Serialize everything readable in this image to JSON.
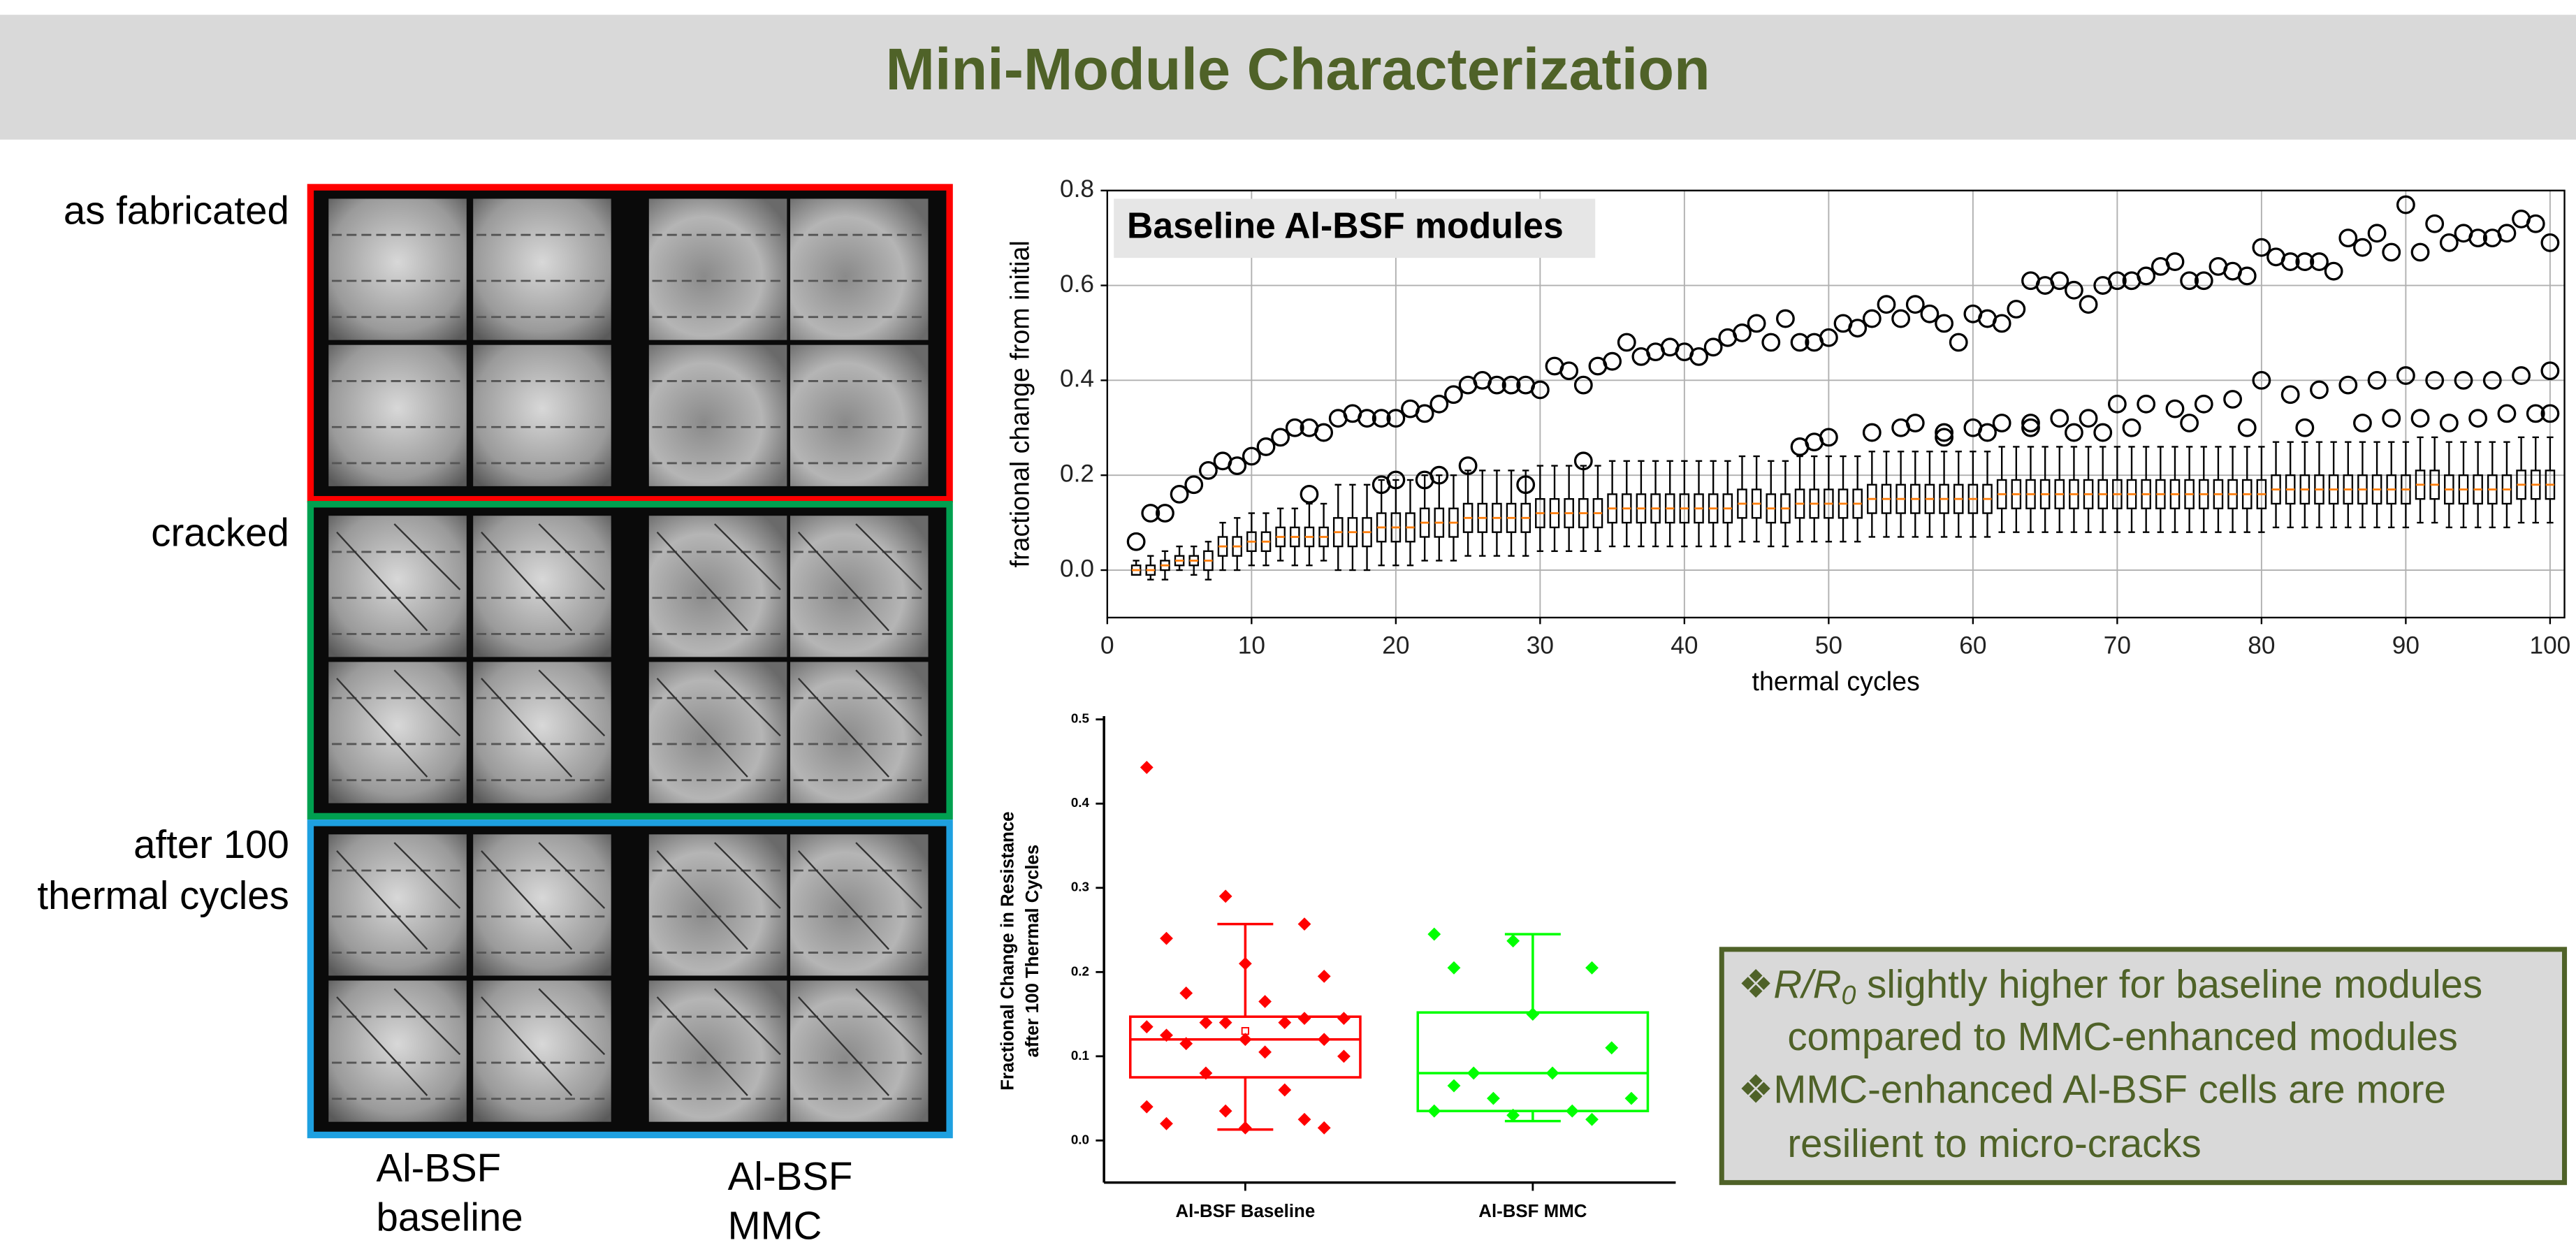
{
  "title": "Mini-Module Characterization",
  "image_row_labels": [
    [
      "as fabricated"
    ],
    [
      "cracked"
    ],
    [
      "after 100",
      "thermal cycles"
    ]
  ],
  "image_column_labels": [
    [
      "Al-BSF",
      "baseline"
    ],
    [
      "Al-BSF",
      "MMC"
    ]
  ],
  "bullet_symbol": "❖",
  "bullets": [
    {
      "lead": "R/R",
      "lead_subscript": "0",
      "lines": [
        " slightly higher for baseline modules",
        "compared to MMC-enhanced modules"
      ]
    },
    {
      "lines": [
        "MMC-enhanced Al-BSF cells are more",
        "resilient to micro-cracks"
      ]
    }
  ],
  "chart_data": [
    {
      "type": "box",
      "annotation": "Baseline Al-BSF modules",
      "x_label": "thermal cycles",
      "y_label": "fractional change from initial",
      "xlim": [
        0,
        101
      ],
      "ylim": [
        -0.1,
        0.8
      ],
      "xticks": [
        0,
        10,
        20,
        30,
        40,
        50,
        60,
        70,
        80,
        90,
        100
      ],
      "yticks": [
        {
          "value": 0,
          "label": "0.0"
        },
        0.2,
        0.4,
        0.6,
        0.8
      ],
      "grid": true,
      "box_color": "#000000",
      "median_color": "#ff7f0e",
      "x": [
        2,
        3,
        4,
        5,
        6,
        7,
        8,
        9,
        10,
        11,
        12,
        13,
        14,
        15,
        16,
        17,
        18,
        19,
        20,
        21,
        22,
        23,
        24,
        25,
        26,
        27,
        28,
        29,
        30,
        31,
        32,
        33,
        34,
        35,
        36,
        37,
        38,
        39,
        40,
        41,
        42,
        43,
        44,
        45,
        46,
        47,
        48,
        49,
        50,
        51,
        52,
        53,
        54,
        55,
        56,
        57,
        58,
        59,
        60,
        61,
        62,
        63,
        64,
        65,
        66,
        67,
        68,
        69,
        70,
        71,
        72,
        73,
        74,
        75,
        76,
        77,
        78,
        79,
        80,
        81,
        82,
        83,
        84,
        85,
        86,
        87,
        88,
        89,
        90,
        91,
        92,
        93,
        94,
        95,
        96,
        97,
        98,
        99,
        100
      ],
      "median": [
        0,
        0,
        0.01,
        0.02,
        0.02,
        0.02,
        0.05,
        0.05,
        0.06,
        0.06,
        0.07,
        0.07,
        0.07,
        0.07,
        0.08,
        0.08,
        0.08,
        0.09,
        0.09,
        0.09,
        0.1,
        0.1,
        0.1,
        0.11,
        0.11,
        0.11,
        0.11,
        0.11,
        0.12,
        0.12,
        0.12,
        0.12,
        0.12,
        0.13,
        0.13,
        0.13,
        0.13,
        0.13,
        0.13,
        0.13,
        0.13,
        0.13,
        0.14,
        0.14,
        0.13,
        0.13,
        0.14,
        0.14,
        0.14,
        0.14,
        0.14,
        0.15,
        0.15,
        0.15,
        0.15,
        0.15,
        0.15,
        0.15,
        0.15,
        0.15,
        0.16,
        0.16,
        0.16,
        0.16,
        0.16,
        0.16,
        0.16,
        0.16,
        0.16,
        0.16,
        0.16,
        0.16,
        0.16,
        0.16,
        0.16,
        0.16,
        0.16,
        0.16,
        0.16,
        0.17,
        0.17,
        0.17,
        0.17,
        0.17,
        0.17,
        0.17,
        0.17,
        0.17,
        0.17,
        0.18,
        0.18,
        0.17,
        0.17,
        0.17,
        0.17,
        0.17,
        0.18,
        0.18,
        0.18
      ],
      "q1": [
        -0.01,
        -0.01,
        0,
        0.01,
        0.01,
        0,
        0.03,
        0.03,
        0.04,
        0.04,
        0.05,
        0.05,
        0.05,
        0.05,
        0.05,
        0.05,
        0.05,
        0.06,
        0.06,
        0.06,
        0.07,
        0.07,
        0.07,
        0.08,
        0.08,
        0.08,
        0.08,
        0.08,
        0.09,
        0.09,
        0.09,
        0.09,
        0.09,
        0.1,
        0.1,
        0.1,
        0.1,
        0.1,
        0.1,
        0.1,
        0.1,
        0.1,
        0.11,
        0.11,
        0.1,
        0.1,
        0.11,
        0.11,
        0.11,
        0.11,
        0.11,
        0.12,
        0.12,
        0.12,
        0.12,
        0.12,
        0.12,
        0.12,
        0.12,
        0.12,
        0.13,
        0.13,
        0.13,
        0.13,
        0.13,
        0.13,
        0.13,
        0.13,
        0.13,
        0.13,
        0.13,
        0.13,
        0.13,
        0.13,
        0.13,
        0.13,
        0.13,
        0.13,
        0.13,
        0.14,
        0.14,
        0.14,
        0.14,
        0.14,
        0.14,
        0.14,
        0.14,
        0.14,
        0.14,
        0.15,
        0.15,
        0.14,
        0.14,
        0.14,
        0.14,
        0.14,
        0.15,
        0.15,
        0.15
      ],
      "q3": [
        0.01,
        0.01,
        0.02,
        0.03,
        0.03,
        0.04,
        0.07,
        0.07,
        0.08,
        0.08,
        0.09,
        0.09,
        0.09,
        0.09,
        0.11,
        0.11,
        0.11,
        0.12,
        0.12,
        0.12,
        0.13,
        0.13,
        0.13,
        0.14,
        0.14,
        0.14,
        0.14,
        0.14,
        0.15,
        0.15,
        0.15,
        0.15,
        0.15,
        0.16,
        0.16,
        0.16,
        0.16,
        0.16,
        0.16,
        0.16,
        0.16,
        0.16,
        0.17,
        0.17,
        0.16,
        0.16,
        0.17,
        0.17,
        0.17,
        0.17,
        0.17,
        0.18,
        0.18,
        0.18,
        0.18,
        0.18,
        0.18,
        0.18,
        0.18,
        0.18,
        0.19,
        0.19,
        0.19,
        0.19,
        0.19,
        0.19,
        0.19,
        0.19,
        0.19,
        0.19,
        0.19,
        0.19,
        0.19,
        0.19,
        0.19,
        0.19,
        0.19,
        0.19,
        0.19,
        0.2,
        0.2,
        0.2,
        0.2,
        0.2,
        0.2,
        0.2,
        0.2,
        0.2,
        0.2,
        0.21,
        0.21,
        0.2,
        0.2,
        0.2,
        0.2,
        0.2,
        0.21,
        0.21,
        0.21
      ],
      "whisker_low": [
        -0.01,
        -0.02,
        -0.02,
        0,
        -0.01,
        -0.02,
        0,
        0,
        0.01,
        0.01,
        0.02,
        0.01,
        0.01,
        0.02,
        0,
        0,
        0,
        0.01,
        0.01,
        0.01,
        0.02,
        0.02,
        0.02,
        0.03,
        0.03,
        0.03,
        0.03,
        0.03,
        0.04,
        0.04,
        0.04,
        0.04,
        0.04,
        0.05,
        0.05,
        0.05,
        0.05,
        0.05,
        0.05,
        0.05,
        0.05,
        0.05,
        0.06,
        0.06,
        0.05,
        0.05,
        0.06,
        0.06,
        0.06,
        0.06,
        0.06,
        0.07,
        0.07,
        0.07,
        0.07,
        0.07,
        0.07,
        0.07,
        0.07,
        0.07,
        0.08,
        0.08,
        0.08,
        0.08,
        0.08,
        0.08,
        0.08,
        0.08,
        0.08,
        0.08,
        0.08,
        0.08,
        0.08,
        0.08,
        0.08,
        0.08,
        0.08,
        0.08,
        0.08,
        0.09,
        0.09,
        0.09,
        0.09,
        0.09,
        0.09,
        0.09,
        0.09,
        0.09,
        0.09,
        0.1,
        0.1,
        0.09,
        0.09,
        0.09,
        0.09,
        0.09,
        0.1,
        0.1,
        0.1
      ],
      "whisker_high": [
        0.02,
        0.03,
        0.04,
        0.05,
        0.05,
        0.06,
        0.1,
        0.11,
        0.12,
        0.12,
        0.13,
        0.13,
        0.14,
        0.14,
        0.18,
        0.18,
        0.18,
        0.19,
        0.19,
        0.19,
        0.2,
        0.2,
        0.2,
        0.21,
        0.21,
        0.21,
        0.21,
        0.21,
        0.22,
        0.22,
        0.22,
        0.22,
        0.22,
        0.23,
        0.23,
        0.23,
        0.23,
        0.23,
        0.23,
        0.23,
        0.23,
        0.23,
        0.24,
        0.24,
        0.23,
        0.23,
        0.24,
        0.24,
        0.24,
        0.24,
        0.24,
        0.25,
        0.25,
        0.25,
        0.25,
        0.25,
        0.25,
        0.25,
        0.25,
        0.25,
        0.26,
        0.26,
        0.26,
        0.26,
        0.26,
        0.26,
        0.26,
        0.26,
        0.26,
        0.26,
        0.26,
        0.26,
        0.26,
        0.26,
        0.26,
        0.26,
        0.26,
        0.26,
        0.26,
        0.27,
        0.27,
        0.27,
        0.27,
        0.27,
        0.27,
        0.27,
        0.27,
        0.27,
        0.27,
        0.28,
        0.28,
        0.27,
        0.27,
        0.27,
        0.27,
        0.27,
        0.28,
        0.28,
        0.28
      ],
      "outliers": {
        "x": [
          2,
          3,
          4,
          5,
          6,
          7,
          8,
          9,
          10,
          11,
          12,
          13,
          14,
          15,
          16,
          17,
          18,
          19,
          20,
          21,
          22,
          23,
          24,
          25,
          26,
          27,
          28,
          29,
          30,
          31,
          32,
          33,
          34,
          35,
          36,
          37,
          38,
          39,
          40,
          41,
          42,
          43,
          44,
          45,
          46,
          47,
          48,
          49,
          50,
          51,
          52,
          53,
          54,
          55,
          56,
          57,
          58,
          59,
          60,
          61,
          62,
          63,
          64,
          65,
          66,
          67,
          68,
          69,
          70,
          71,
          72,
          73,
          74,
          75,
          76,
          77,
          78,
          79,
          80,
          81,
          82,
          83,
          84,
          85,
          86,
          87,
          88,
          89,
          90,
          91,
          92,
          93,
          94,
          95,
          96,
          97,
          98,
          99,
          100,
          14,
          19,
          20,
          22,
          23,
          25,
          29,
          33,
          48,
          49,
          50,
          53,
          55,
          56,
          58,
          60,
          62,
          64,
          66,
          68,
          70,
          72,
          74,
          76,
          78,
          80,
          82,
          84,
          86,
          88,
          90,
          92,
          94,
          96,
          98,
          100,
          58,
          61,
          64,
          67,
          69,
          71,
          75,
          79,
          83,
          87,
          89,
          91,
          93,
          95,
          97,
          99,
          100
        ],
        "y": [
          0.06,
          0.12,
          0.12,
          0.16,
          0.18,
          0.21,
          0.23,
          0.22,
          0.24,
          0.26,
          0.28,
          0.3,
          0.3,
          0.29,
          0.32,
          0.33,
          0.32,
          0.32,
          0.32,
          0.34,
          0.33,
          0.35,
          0.37,
          0.39,
          0.4,
          0.39,
          0.39,
          0.39,
          0.38,
          0.43,
          0.42,
          0.39,
          0.43,
          0.44,
          0.48,
          0.45,
          0.46,
          0.47,
          0.46,
          0.45,
          0.47,
          0.49,
          0.5,
          0.52,
          0.48,
          0.53,
          0.48,
          0.48,
          0.49,
          0.52,
          0.51,
          0.53,
          0.56,
          0.53,
          0.56,
          0.54,
          0.52,
          0.48,
          0.54,
          0.53,
          0.52,
          0.55,
          0.61,
          0.6,
          0.61,
          0.59,
          0.56,
          0.6,
          0.61,
          0.61,
          0.62,
          0.64,
          0.65,
          0.61,
          0.61,
          0.64,
          0.63,
          0.62,
          0.68,
          0.66,
          0.65,
          0.65,
          0.65,
          0.63,
          0.7,
          0.68,
          0.71,
          0.67,
          0.77,
          0.67,
          0.73,
          0.69,
          0.71,
          0.7,
          0.7,
          0.71,
          0.74,
          0.73,
          0.69,
          0.16,
          0.18,
          0.19,
          0.19,
          0.2,
          0.22,
          0.18,
          0.23,
          0.26,
          0.27,
          0.28,
          0.29,
          0.3,
          0.31,
          0.29,
          0.3,
          0.31,
          0.31,
          0.32,
          0.32,
          0.35,
          0.35,
          0.34,
          0.35,
          0.36,
          0.4,
          0.37,
          0.38,
          0.39,
          0.4,
          0.41,
          0.4,
          0.4,
          0.4,
          0.41,
          0.42,
          0.28,
          0.29,
          0.3,
          0.29,
          0.29,
          0.3,
          0.31,
          0.3,
          0.3,
          0.31,
          0.32,
          0.32,
          0.31,
          0.32,
          0.33,
          0.33,
          0.33
        ]
      }
    },
    {
      "type": "box_scatter",
      "y_label": [
        "Fractional Change in Resistance",
        "after 100 Thermal Cycles"
      ],
      "ylim": [
        -0.05,
        0.5
      ],
      "yticks": [
        {
          "value": 0,
          "label": "0.0"
        },
        0.1,
        0.2,
        0.3,
        0.4,
        0.5
      ],
      "series": [
        {
          "name": "Al-BSF Baseline",
          "color": "#ff0000",
          "q1": 0.075,
          "median": 0.12,
          "q3": 0.147,
          "whisker_low": 0.013,
          "whisker_high": 0.257,
          "mean": 0.13,
          "values": [
            0.443,
            0.29,
            0.257,
            0.24,
            0.21,
            0.195,
            0.175,
            0.165,
            0.145,
            0.14,
            0.14,
            0.135,
            0.14,
            0.145,
            0.125,
            0.12,
            0.12,
            0.115,
            0.105,
            0.1,
            0.08,
            0.06,
            0.04,
            0.035,
            0.025,
            0.02,
            0.015,
            0.015
          ]
        },
        {
          "name": "Al-BSF MMC",
          "color": "#00ff00",
          "q1": 0.035,
          "median": 0.08,
          "q3": 0.152,
          "whisker_low": 0.023,
          "whisker_high": 0.245,
          "values": [
            0.245,
            0.237,
            0.205,
            0.205,
            0.15,
            0.11,
            0.08,
            0.08,
            0.05,
            0.05,
            0.035,
            0.035,
            0.03,
            0.025,
            0.065
          ]
        }
      ]
    }
  ]
}
